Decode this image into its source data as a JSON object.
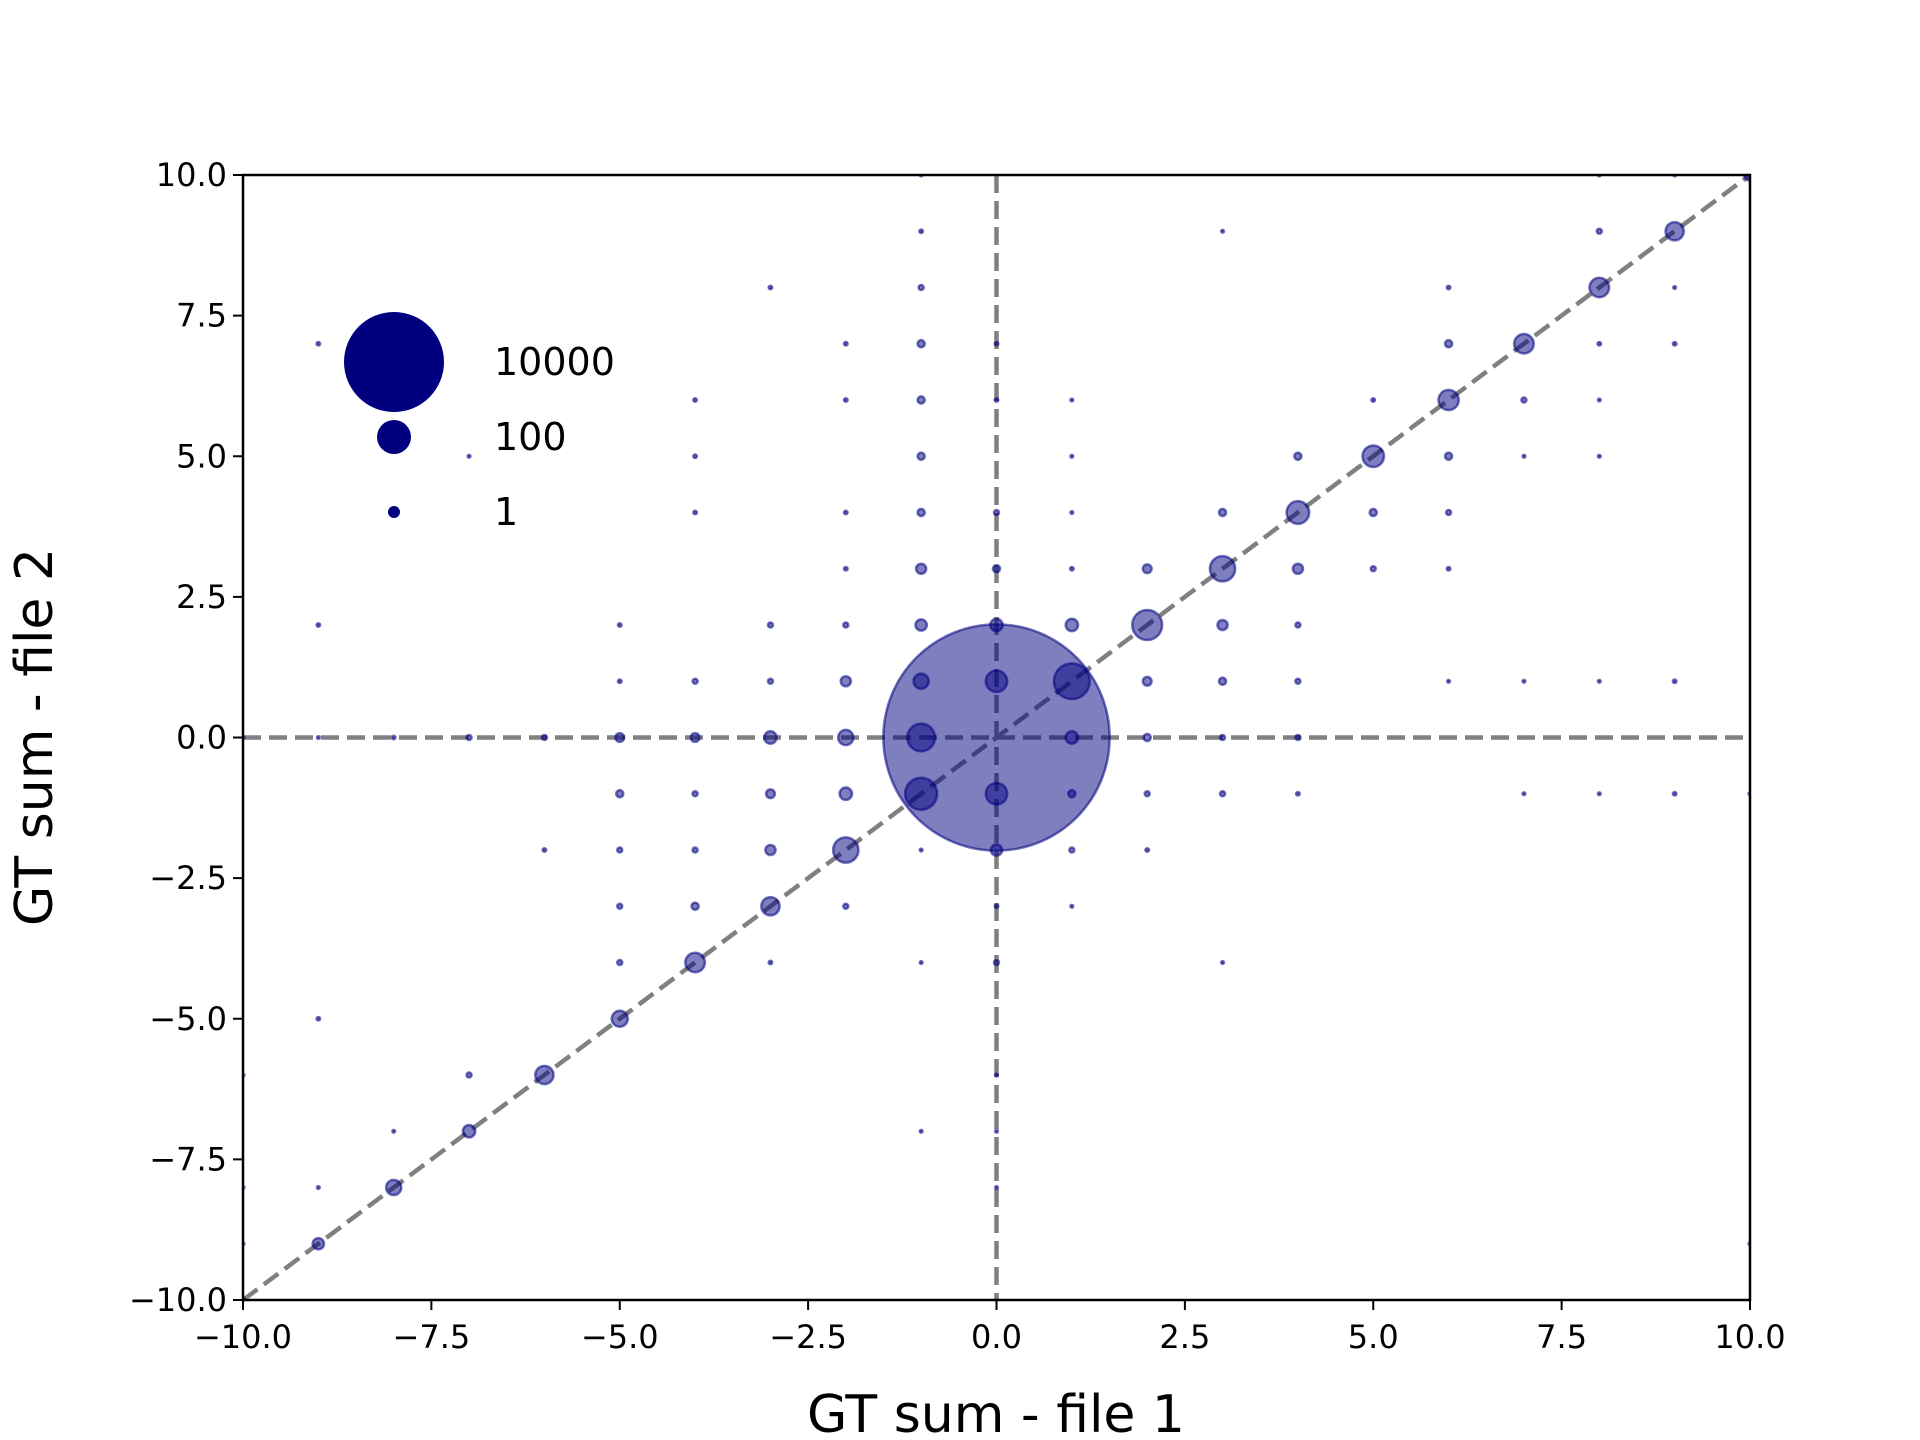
{
  "chart_data": {
    "type": "scatter",
    "title": "",
    "xlabel": "GT sum - file 1",
    "ylabel": "GT sum - file 2",
    "xlim": [
      -10,
      10
    ],
    "ylim": [
      -10,
      10
    ],
    "xticks": [
      "−10.0",
      "−7.5",
      "−5.0",
      "−2.5",
      "0.0",
      "2.5",
      "5.0",
      "7.5",
      "10.0"
    ],
    "yticks": [
      "−10.0",
      "−7.5",
      "−5.0",
      "−2.5",
      "0.0",
      "2.5",
      "5.0",
      "7.5",
      "10.0"
    ],
    "grid": false,
    "marker_color": "#00007f",
    "reference_line_color": "#808080",
    "size_encoding": "marker area proportional to count",
    "legend": {
      "placement": "top-left",
      "entries": [
        {
          "label": "10000",
          "count": 10000
        },
        {
          "label": "100",
          "count": 100
        },
        {
          "label": "1",
          "count": 1
        }
      ]
    },
    "reference_lines": [
      {
        "type": "diagonal",
        "from": [
          -10,
          -10
        ],
        "to": [
          10,
          10
        ]
      },
      {
        "type": "vertical",
        "x": 0
      },
      {
        "type": "horizontal",
        "y": 0
      }
    ],
    "points": [
      {
        "x": 0,
        "y": 0,
        "count": 20000
      },
      {
        "x": 1,
        "y": 1,
        "count": 500
      },
      {
        "x": -1,
        "y": -1,
        "count": 400
      },
      {
        "x": -1,
        "y": 0,
        "count": 300
      },
      {
        "x": 0,
        "y": 1,
        "count": 180
      },
      {
        "x": 0,
        "y": -1,
        "count": 180
      },
      {
        "x": 2,
        "y": 2,
        "count": 350
      },
      {
        "x": -2,
        "y": -2,
        "count": 250
      },
      {
        "x": 3,
        "y": 3,
        "count": 250
      },
      {
        "x": 4,
        "y": 4,
        "count": 200
      },
      {
        "x": 5,
        "y": 5,
        "count": 180
      },
      {
        "x": 6,
        "y": 6,
        "count": 160
      },
      {
        "x": 7,
        "y": 7,
        "count": 150
      },
      {
        "x": 8,
        "y": 8,
        "count": 150
      },
      {
        "x": 9,
        "y": 9,
        "count": 130
      },
      {
        "x": 10,
        "y": 10,
        "count": 50
      },
      {
        "x": -3,
        "y": -3,
        "count": 130
      },
      {
        "x": -4,
        "y": -4,
        "count": 150
      },
      {
        "x": -5,
        "y": -5,
        "count": 100
      },
      {
        "x": -6,
        "y": -6,
        "count": 130
      },
      {
        "x": -7,
        "y": -7,
        "count": 60
      },
      {
        "x": -8,
        "y": -8,
        "count": 90
      },
      {
        "x": -9,
        "y": -9,
        "count": 50
      },
      {
        "x": -10,
        "y": -10,
        "count": 10
      },
      {
        "x": -1,
        "y": 1,
        "count": 90
      },
      {
        "x": 1,
        "y": 2,
        "count": 60
      },
      {
        "x": 0,
        "y": 2,
        "count": 60
      },
      {
        "x": -1,
        "y": 2,
        "count": 50
      },
      {
        "x": -1,
        "y": 3,
        "count": 40
      },
      {
        "x": 0,
        "y": 3,
        "count": 20
      },
      {
        "x": 1,
        "y": 3,
        "count": 5
      },
      {
        "x": 0,
        "y": -2,
        "count": 50
      },
      {
        "x": -2,
        "y": 0,
        "count": 90
      },
      {
        "x": -2,
        "y": -1,
        "count": 60
      },
      {
        "x": -2,
        "y": 1,
        "count": 40
      },
      {
        "x": -2,
        "y": 2,
        "count": 10
      },
      {
        "x": -2,
        "y": 3,
        "count": 5
      },
      {
        "x": -2,
        "y": 4,
        "count": 5
      },
      {
        "x": -2,
        "y": 6,
        "count": 5
      },
      {
        "x": -2,
        "y": 7,
        "count": 5
      },
      {
        "x": -2,
        "y": -3,
        "count": 10
      },
      {
        "x": -3,
        "y": 0,
        "count": 60
      },
      {
        "x": -3,
        "y": -1,
        "count": 30
      },
      {
        "x": -3,
        "y": -2,
        "count": 40
      },
      {
        "x": -3,
        "y": 1,
        "count": 10
      },
      {
        "x": -3,
        "y": 2,
        "count": 10
      },
      {
        "x": -3,
        "y": -4,
        "count": 5
      },
      {
        "x": -3,
        "y": 8,
        "count": 5
      },
      {
        "x": -4,
        "y": 0,
        "count": 30
      },
      {
        "x": -4,
        "y": -1,
        "count": 10
      },
      {
        "x": -4,
        "y": -2,
        "count": 10
      },
      {
        "x": -4,
        "y": -3,
        "count": 20
      },
      {
        "x": -4,
        "y": 1,
        "count": 10
      },
      {
        "x": -4,
        "y": 4,
        "count": 5
      },
      {
        "x": -4,
        "y": 5,
        "count": 5
      },
      {
        "x": -4,
        "y": 6,
        "count": 5
      },
      {
        "x": -5,
        "y": 0,
        "count": 30
      },
      {
        "x": -5,
        "y": -1,
        "count": 20
      },
      {
        "x": -5,
        "y": -2,
        "count": 10
      },
      {
        "x": -5,
        "y": -3,
        "count": 10
      },
      {
        "x": -5,
        "y": -4,
        "count": 10
      },
      {
        "x": -5,
        "y": 1,
        "count": 5
      },
      {
        "x": -5,
        "y": 2,
        "count": 5
      },
      {
        "x": -6,
        "y": 0,
        "count": 10
      },
      {
        "x": -6,
        "y": -2,
        "count": 5
      },
      {
        "x": -7,
        "y": 0,
        "count": 10
      },
      {
        "x": -7,
        "y": -6,
        "count": 10
      },
      {
        "x": -7,
        "y": 5,
        "count": 3
      },
      {
        "x": -8,
        "y": 0,
        "count": 5
      },
      {
        "x": -8,
        "y": -7,
        "count": 3
      },
      {
        "x": -9,
        "y": 0,
        "count": 3
      },
      {
        "x": -9,
        "y": 2,
        "count": 5
      },
      {
        "x": -9,
        "y": 7,
        "count": 5
      },
      {
        "x": -9,
        "y": -5,
        "count": 5
      },
      {
        "x": -9,
        "y": -8,
        "count": 3
      },
      {
        "x": -10,
        "y": 0,
        "count": 3
      },
      {
        "x": -10,
        "y": -6,
        "count": 3
      },
      {
        "x": -10,
        "y": -8,
        "count": 3
      },
      {
        "x": -10,
        "y": -9,
        "count": 3
      },
      {
        "x": 1,
        "y": 0,
        "count": 60
      },
      {
        "x": 1,
        "y": -1,
        "count": 20
      },
      {
        "x": 1,
        "y": -2,
        "count": 10
      },
      {
        "x": 1,
        "y": -3,
        "count": 3
      },
      {
        "x": 1,
        "y": 4,
        "count": 3
      },
      {
        "x": 1,
        "y": 5,
        "count": 3
      },
      {
        "x": 1,
        "y": 6,
        "count": 3
      },
      {
        "x": 2,
        "y": 0,
        "count": 20
      },
      {
        "x": 2,
        "y": 1,
        "count": 30
      },
      {
        "x": 2,
        "y": 3,
        "count": 30
      },
      {
        "x": 2,
        "y": -1,
        "count": 10
      },
      {
        "x": 2,
        "y": -2,
        "count": 5
      },
      {
        "x": 3,
        "y": 0,
        "count": 10
      },
      {
        "x": 3,
        "y": 1,
        "count": 20
      },
      {
        "x": 3,
        "y": 2,
        "count": 40
      },
      {
        "x": 3,
        "y": 4,
        "count": 20
      },
      {
        "x": 3,
        "y": -1,
        "count": 10
      },
      {
        "x": 3,
        "y": -4,
        "count": 3
      },
      {
        "x": 3,
        "y": 9,
        "count": 3
      },
      {
        "x": 4,
        "y": 0,
        "count": 10
      },
      {
        "x": 4,
        "y": 1,
        "count": 10
      },
      {
        "x": 4,
        "y": 2,
        "count": 10
      },
      {
        "x": 4,
        "y": 3,
        "count": 40
      },
      {
        "x": 4,
        "y": 5,
        "count": 20
      },
      {
        "x": 4,
        "y": -1,
        "count": 5
      },
      {
        "x": 5,
        "y": 3,
        "count": 10
      },
      {
        "x": 5,
        "y": 4,
        "count": 20
      },
      {
        "x": 5,
        "y": 6,
        "count": 5
      },
      {
        "x": 6,
        "y": 1,
        "count": 3
      },
      {
        "x": 6,
        "y": 3,
        "count": 5
      },
      {
        "x": 6,
        "y": 4,
        "count": 10
      },
      {
        "x": 6,
        "y": 5,
        "count": 20
      },
      {
        "x": 6,
        "y": 7,
        "count": 20
      },
      {
        "x": 6,
        "y": 8,
        "count": 5
      },
      {
        "x": 7,
        "y": 1,
        "count": 3
      },
      {
        "x": 7,
        "y": 5,
        "count": 3
      },
      {
        "x": 7,
        "y": 6,
        "count": 10
      },
      {
        "x": 7,
        "y": -1,
        "count": 3
      },
      {
        "x": 8,
        "y": 1,
        "count": 3
      },
      {
        "x": 8,
        "y": 5,
        "count": 3
      },
      {
        "x": 8,
        "y": 6,
        "count": 3
      },
      {
        "x": 8,
        "y": 7,
        "count": 5
      },
      {
        "x": 8,
        "y": 9,
        "count": 10
      },
      {
        "x": 8,
        "y": 10,
        "count": 3
      },
      {
        "x": 8,
        "y": -1,
        "count": 3
      },
      {
        "x": 9,
        "y": 1,
        "count": 5
      },
      {
        "x": 9,
        "y": 7,
        "count": 5
      },
      {
        "x": 9,
        "y": 8,
        "count": 3
      },
      {
        "x": 9,
        "y": 10,
        "count": 3
      },
      {
        "x": 9,
        "y": -1,
        "count": 5
      },
      {
        "x": 10,
        "y": -1,
        "count": 3
      },
      {
        "x": 10,
        "y": -9,
        "count": 3
      },
      {
        "x": -1,
        "y": 4,
        "count": 20
      },
      {
        "x": -1,
        "y": 5,
        "count": 20
      },
      {
        "x": -1,
        "y": 6,
        "count": 20
      },
      {
        "x": -1,
        "y": 7,
        "count": 20
      },
      {
        "x": -1,
        "y": 8,
        "count": 10
      },
      {
        "x": -1,
        "y": 9,
        "count": 5
      },
      {
        "x": -1,
        "y": 10,
        "count": 3
      },
      {
        "x": -1,
        "y": -2,
        "count": 3
      },
      {
        "x": -1,
        "y": -4,
        "count": 3
      },
      {
        "x": -1,
        "y": -7,
        "count": 3
      },
      {
        "x": 0,
        "y": 4,
        "count": 10
      },
      {
        "x": 0,
        "y": 6,
        "count": 5
      },
      {
        "x": 0,
        "y": 7,
        "count": 5
      },
      {
        "x": 0,
        "y": -3,
        "count": 5
      },
      {
        "x": 0,
        "y": -4,
        "count": 10
      },
      {
        "x": 0,
        "y": -6,
        "count": 3
      },
      {
        "x": 0,
        "y": -7,
        "count": 3
      },
      {
        "x": 0,
        "y": -8,
        "count": 3
      }
    ]
  }
}
